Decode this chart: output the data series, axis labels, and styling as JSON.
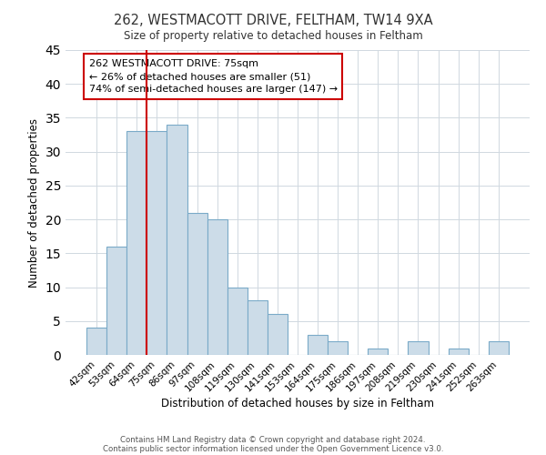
{
  "title": "262, WESTMACOTT DRIVE, FELTHAM, TW14 9XA",
  "subtitle": "Size of property relative to detached houses in Feltham",
  "xlabel": "Distribution of detached houses by size in Feltham",
  "ylabel": "Number of detached properties",
  "bar_labels": [
    "42sqm",
    "53sqm",
    "64sqm",
    "75sqm",
    "86sqm",
    "97sqm",
    "108sqm",
    "119sqm",
    "130sqm",
    "141sqm",
    "153sqm",
    "164sqm",
    "175sqm",
    "186sqm",
    "197sqm",
    "208sqm",
    "219sqm",
    "230sqm",
    "241sqm",
    "252sqm",
    "263sqm"
  ],
  "bar_heights": [
    4,
    16,
    33,
    33,
    34,
    21,
    20,
    10,
    8,
    6,
    0,
    3,
    2,
    0,
    1,
    0,
    2,
    0,
    1,
    0,
    2
  ],
  "bar_color": "#ccdce8",
  "bar_edge_color": "#7aaac8",
  "vline_color": "#cc0000",
  "annotation_text": "262 WESTMACOTT DRIVE: 75sqm\n← 26% of detached houses are smaller (51)\n74% of semi-detached houses are larger (147) →",
  "annotation_box_edge": "#cc0000",
  "ylim": [
    0,
    45
  ],
  "yticks": [
    0,
    5,
    10,
    15,
    20,
    25,
    30,
    35,
    40,
    45
  ],
  "footer_line1": "Contains HM Land Registry data © Crown copyright and database right 2024.",
  "footer_line2": "Contains public sector information licensed under the Open Government Licence v3.0.",
  "bg_color": "#ffffff",
  "grid_color": "#d0d8e0"
}
